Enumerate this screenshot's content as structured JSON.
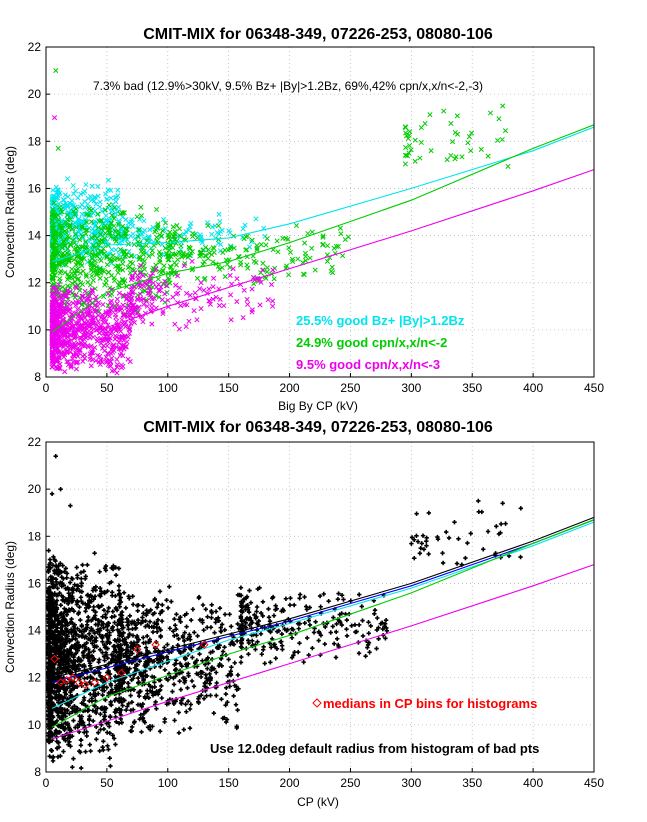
{
  "chart_data": [
    {
      "type": "scatter",
      "title": "CMIT-MIX for 06348-349, 07226-253, 08080-106",
      "xlabel": "Big By CP (kV)",
      "ylabel": "Convection Radius (deg)",
      "xlim": [
        0,
        450
      ],
      "ylim": [
        8,
        22
      ],
      "xticks": [
        0,
        50,
        100,
        150,
        200,
        250,
        300,
        350,
        400,
        450
      ],
      "yticks": [
        8,
        10,
        12,
        14,
        16,
        18,
        20,
        22
      ],
      "grid": true,
      "annotation": "7.3% bad (12.9%>30kV, 9.5% Bz+ |By|>1.2Bz, 69%,42% cpn/x,x/n<-2,-3)",
      "legend": [
        {
          "label": "25.5% good Bz+ |By|>1.2Bz",
          "color": "#00e5ee"
        },
        {
          "label": "24.9% good cpn/x,x/n<-2",
          "color": "#00cc00"
        },
        {
          "label": "9.5% good cpn/x,x/n<-3",
          "color": "#ee00ee"
        }
      ],
      "clusters": [
        {
          "color": "#00e5ee",
          "marker": "x",
          "regions": [
            {
              "x": [
                5,
                60
              ],
              "y": [
                12.5,
                16.5
              ],
              "n": 400
            },
            {
              "x": [
                60,
                180
              ],
              "y": [
                13,
                15
              ],
              "n": 120
            }
          ]
        },
        {
          "color": "#00cc00",
          "marker": "x",
          "regions": [
            {
              "x": [
                5,
                100
              ],
              "y": [
                10.5,
                15.5
              ],
              "n": 550
            },
            {
              "x": [
                100,
                250
              ],
              "y": [
                11.8,
                14.6
              ],
              "n": 200
            },
            {
              "x": [
                295,
                380
              ],
              "y": [
                16.8,
                19.4
              ],
              "n": 45
            }
          ]
        },
        {
          "color": "#ee00ee",
          "marker": "x",
          "regions": [
            {
              "x": [
                5,
                70
              ],
              "y": [
                8,
                12
              ],
              "n": 750
            },
            {
              "x": [
                70,
                190
              ],
              "y": [
                10,
                13
              ],
              "n": 160
            }
          ]
        }
      ],
      "scatter_points": [
        {
          "x": 8,
          "y": 21.0,
          "color": "#00cc00"
        },
        {
          "x": 7,
          "y": 19.0,
          "color": "#ee00ee"
        },
        {
          "x": 10,
          "y": 17.7,
          "color": "#00cc00"
        },
        {
          "x": 375,
          "y": 19.5,
          "color": "#00cc00"
        },
        {
          "x": 365,
          "y": 19.2,
          "color": "#00cc00"
        }
      ],
      "fit_lines": [
        {
          "color": "#00e5ee",
          "points": [
            [
              5,
              12.9
            ],
            [
              50,
              13.6
            ],
            [
              100,
              13.7
            ],
            [
              150,
              13.9
            ],
            [
              200,
              14.5
            ],
            [
              300,
              16.0
            ],
            [
              400,
              17.6
            ],
            [
              450,
              18.6
            ]
          ]
        },
        {
          "color": "#00cc00",
          "points": [
            [
              5,
              9.9
            ],
            [
              50,
              11.6
            ],
            [
              100,
              12.4
            ],
            [
              150,
              12.9
            ],
            [
              200,
              13.7
            ],
            [
              300,
              15.5
            ],
            [
              400,
              17.7
            ],
            [
              450,
              18.7
            ]
          ]
        },
        {
          "color": "#ee00ee",
          "points": [
            [
              5,
              9.3
            ],
            [
              100,
              11.0
            ],
            [
              200,
              12.6
            ],
            [
              300,
              14.2
            ],
            [
              400,
              15.9
            ],
            [
              450,
              16.8
            ]
          ]
        }
      ]
    },
    {
      "type": "scatter",
      "title": "CMIT-MIX for 06348-349, 07226-253, 08080-106",
      "xlabel": "CP (kV)",
      "ylabel": "Convection Radius (deg)",
      "xlim": [
        0,
        450
      ],
      "ylim": [
        8,
        22
      ],
      "xticks": [
        0,
        50,
        100,
        150,
        200,
        250,
        300,
        350,
        400,
        450
      ],
      "yticks": [
        8,
        10,
        12,
        14,
        16,
        18,
        20,
        22
      ],
      "grid": true,
      "annotations": [
        {
          "text": "medians in CP bins for histograms",
          "color": "#ff0000"
        },
        {
          "text": "Use 12.0deg default radius from histogram of bad pts",
          "color": "#000000"
        }
      ],
      "clusters": [
        {
          "color": "#000000",
          "marker": "+",
          "regions": [
            {
              "x": [
                2,
                60
              ],
              "y": [
                8,
                17.5
              ],
              "n": 1400
            },
            {
              "x": [
                60,
                160
              ],
              "y": [
                9.5,
                16
              ],
              "n": 700
            },
            {
              "x": [
                160,
                280
              ],
              "y": [
                12.5,
                16
              ],
              "n": 260
            },
            {
              "x": [
                300,
                390
              ],
              "y": [
                16.5,
                19.5
              ],
              "n": 45
            }
          ]
        }
      ],
      "scatter_points": [
        {
          "x": 8,
          "y": 21.4,
          "color": "#000000"
        },
        {
          "x": 12,
          "y": 20.0,
          "color": "#000000"
        },
        {
          "x": 20,
          "y": 19.3,
          "color": "#000000"
        },
        {
          "x": 5,
          "y": 19.8,
          "color": "#000000"
        },
        {
          "x": 375,
          "y": 19.4,
          "color": "#000000"
        },
        {
          "x": 355,
          "y": 19.5,
          "color": "#000000"
        }
      ],
      "medians": {
        "color": "#ff0000",
        "x": [
          7,
          12,
          17,
          22,
          27,
          32,
          40,
          50,
          62,
          75,
          90,
          130
        ],
        "y": [
          12.8,
          11.8,
          11.9,
          12.0,
          11.8,
          11.7,
          11.8,
          12.0,
          12.2,
          13.2,
          13.4,
          13.4
        ]
      },
      "fit_lines": [
        {
          "color": "#000000",
          "points": [
            [
              5,
              12.0
            ],
            [
              100,
              13.2
            ],
            [
              200,
              14.5
            ],
            [
              300,
              16.0
            ],
            [
              400,
              17.8
            ],
            [
              450,
              18.8
            ]
          ]
        },
        {
          "color": "#0000ff",
          "points": [
            [
              5,
              11.8
            ],
            [
              100,
              13.1
            ],
            [
              200,
              14.4
            ],
            [
              300,
              15.9
            ],
            [
              400,
              17.7
            ],
            [
              450,
              18.7
            ]
          ]
        },
        {
          "color": "#00e5ee",
          "points": [
            [
              5,
              10.7
            ],
            [
              50,
              11.8
            ],
            [
              100,
              12.7
            ],
            [
              150,
              13.6
            ],
            [
              200,
              14.3
            ],
            [
              300,
              15.8
            ],
            [
              400,
              17.6
            ],
            [
              450,
              18.6
            ]
          ]
        },
        {
          "color": "#00cc00",
          "points": [
            [
              5,
              9.9
            ],
            [
              50,
              11.2
            ],
            [
              100,
              12.1
            ],
            [
              150,
              13.0
            ],
            [
              200,
              13.8
            ],
            [
              300,
              15.6
            ],
            [
              400,
              17.7
            ],
            [
              450,
              18.7
            ]
          ]
        },
        {
          "color": "#ee00ee",
          "points": [
            [
              5,
              9.4
            ],
            [
              100,
              11.0
            ],
            [
              200,
              12.6
            ],
            [
              300,
              14.2
            ],
            [
              400,
              15.9
            ],
            [
              450,
              16.8
            ]
          ]
        }
      ]
    }
  ]
}
